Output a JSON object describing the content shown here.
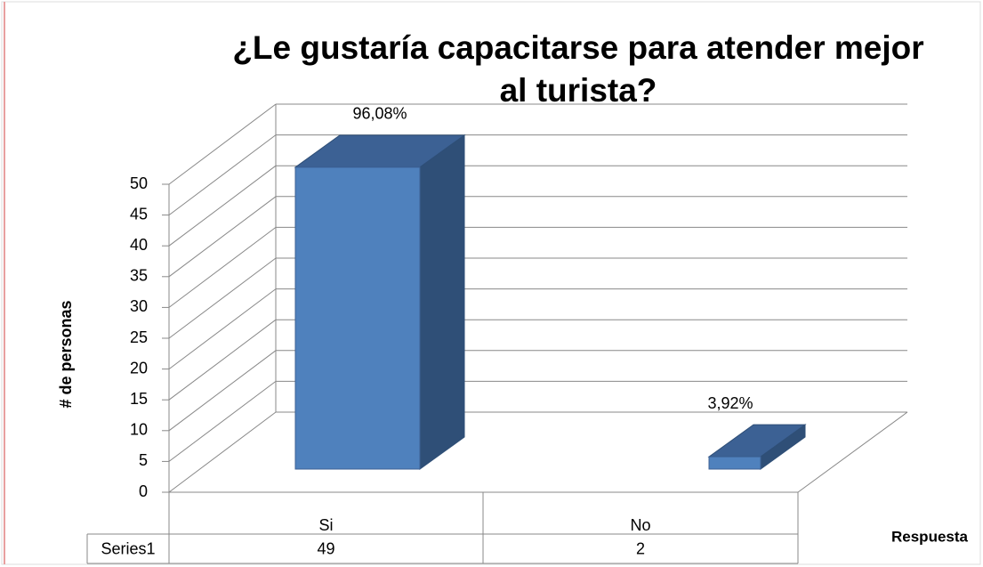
{
  "chart_data": {
    "type": "bar3d",
    "title": "¿Le gustaría capacitarse para atender mejor al turista?",
    "categories": [
      "Si",
      "No"
    ],
    "series": [
      {
        "name": "Series1",
        "color": "#4f81bd",
        "values": [
          49,
          2
        ]
      }
    ],
    "annotations": [
      "96,08%",
      "3,92%"
    ],
    "ylabel": "# de personas",
    "xlabel": "Respuesta",
    "ylim": [
      0,
      50
    ],
    "yticks": [
      0,
      5,
      10,
      15,
      20,
      25,
      30,
      35,
      40,
      45,
      50
    ],
    "grid": true,
    "data_table": true
  }
}
